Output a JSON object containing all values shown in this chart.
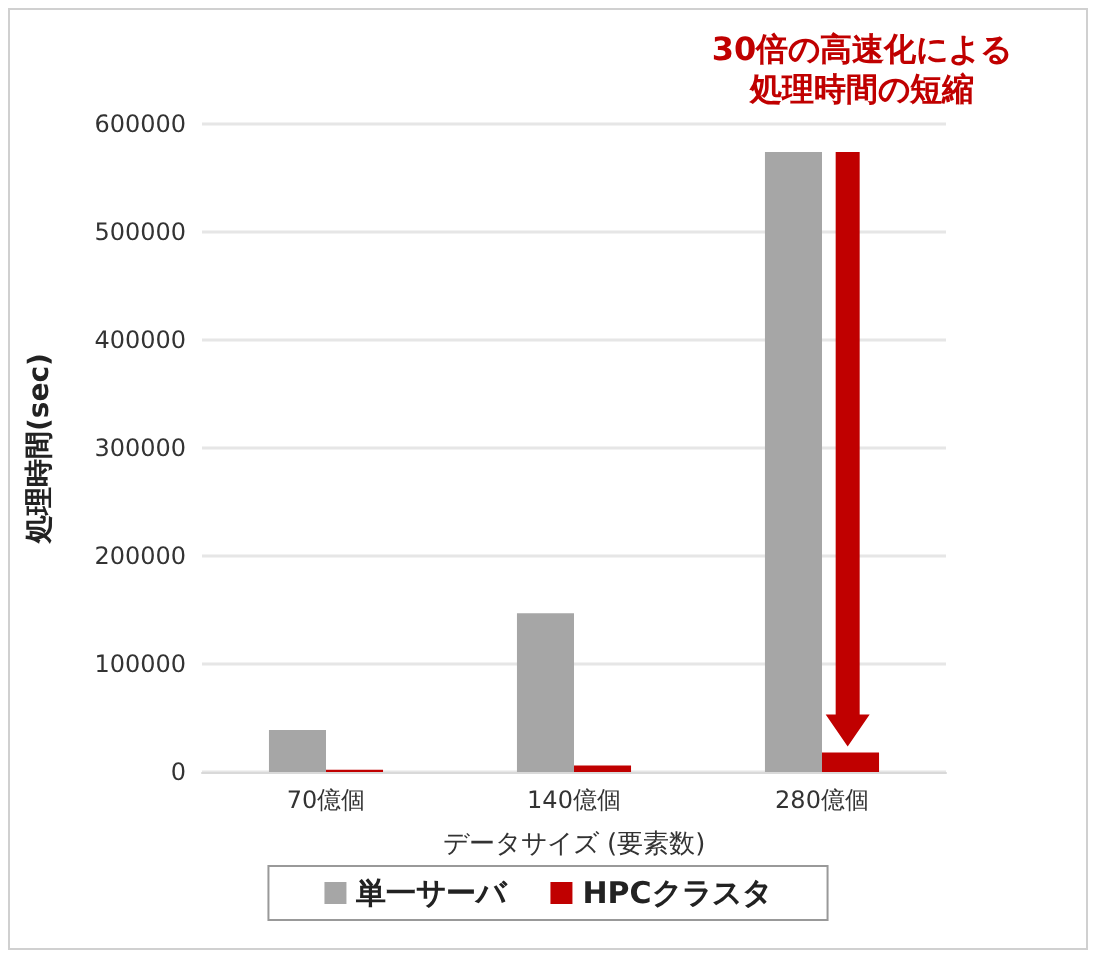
{
  "chart_data": {
    "type": "bar",
    "categories": [
      "70億個",
      "140億個",
      "280億個"
    ],
    "series": [
      {
        "name": "単一サーバ",
        "color": "#a6a6a6",
        "values": [
          39000,
          147000,
          574000
        ]
      },
      {
        "name": "HPCクラスタ",
        "color": "#c00000",
        "values": [
          2000,
          6000,
          18000
        ]
      }
    ],
    "xlabel": "データサイズ (要素数)",
    "ylabel": "処理時間(sec)",
    "ylim": [
      0,
      600000
    ],
    "yticks": [
      0,
      100000,
      200000,
      300000,
      400000,
      500000,
      600000
    ],
    "grid": "y",
    "legend": "bottom",
    "annotations": [
      "30倍の高速化による",
      "処理時間の短縮"
    ]
  }
}
